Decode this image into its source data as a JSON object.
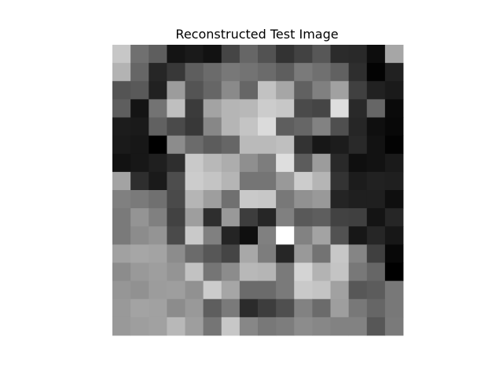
{
  "chart_data": {
    "type": "heatmap",
    "title": "Reconstructed Test Image",
    "colormap": "gray",
    "value_range": [
      0,
      1
    ],
    "rows": 16,
    "cols": 16,
    "values": [
      [
        0.78,
        0.44,
        0.37,
        0.08,
        0.1,
        0.07,
        0.27,
        0.4,
        0.32,
        0.2,
        0.26,
        0.34,
        0.17,
        0.16,
        0.05,
        0.65
      ],
      [
        0.7,
        0.4,
        0.15,
        0.22,
        0.37,
        0.42,
        0.47,
        0.45,
        0.42,
        0.37,
        0.48,
        0.44,
        0.38,
        0.18,
        0.01,
        0.13
      ],
      [
        0.33,
        0.35,
        0.13,
        0.61,
        0.33,
        0.4,
        0.54,
        0.4,
        0.76,
        0.65,
        0.38,
        0.5,
        0.63,
        0.25,
        0.13,
        0.1
      ],
      [
        0.37,
        0.08,
        0.45,
        0.75,
        0.23,
        0.64,
        0.71,
        0.72,
        0.8,
        0.78,
        0.29,
        0.27,
        0.87,
        0.16,
        0.4,
        0.04
      ],
      [
        0.11,
        0.1,
        0.38,
        0.29,
        0.22,
        0.53,
        0.71,
        0.77,
        0.86,
        0.37,
        0.4,
        0.51,
        0.31,
        0.15,
        0.06,
        0.03
      ],
      [
        0.1,
        0.09,
        0.0,
        0.55,
        0.42,
        0.36,
        0.4,
        0.73,
        0.73,
        0.75,
        0.2,
        0.09,
        0.11,
        0.16,
        0.07,
        0.01
      ],
      [
        0.07,
        0.09,
        0.12,
        0.18,
        0.79,
        0.72,
        0.68,
        0.56,
        0.49,
        0.87,
        0.36,
        0.61,
        0.16,
        0.06,
        0.07,
        0.1
      ],
      [
        0.64,
        0.18,
        0.1,
        0.3,
        0.8,
        0.77,
        0.71,
        0.46,
        0.46,
        0.6,
        0.8,
        0.71,
        0.2,
        0.11,
        0.13,
        0.12
      ],
      [
        0.5,
        0.48,
        0.44,
        0.29,
        0.71,
        0.62,
        0.44,
        0.79,
        0.78,
        0.47,
        0.57,
        0.6,
        0.14,
        0.12,
        0.12,
        0.06
      ],
      [
        0.48,
        0.58,
        0.5,
        0.26,
        0.62,
        0.18,
        0.6,
        0.24,
        0.15,
        0.5,
        0.35,
        0.37,
        0.26,
        0.25,
        0.08,
        0.15
      ],
      [
        0.48,
        0.55,
        0.58,
        0.29,
        0.79,
        0.5,
        0.14,
        0.06,
        0.5,
        1.0,
        0.51,
        0.64,
        0.32,
        0.09,
        0.15,
        0.09
      ],
      [
        0.63,
        0.65,
        0.64,
        0.55,
        0.42,
        0.34,
        0.27,
        0.66,
        0.49,
        0.15,
        0.6,
        0.45,
        0.78,
        0.52,
        0.25,
        0.03
      ],
      [
        0.55,
        0.6,
        0.62,
        0.58,
        0.76,
        0.46,
        0.55,
        0.72,
        0.71,
        0.48,
        0.83,
        0.7,
        0.77,
        0.47,
        0.4,
        0.0
      ],
      [
        0.59,
        0.57,
        0.61,
        0.62,
        0.57,
        0.8,
        0.65,
        0.42,
        0.42,
        0.48,
        0.79,
        0.77,
        0.63,
        0.34,
        0.36,
        0.47
      ],
      [
        0.6,
        0.64,
        0.63,
        0.55,
        0.6,
        0.37,
        0.48,
        0.17,
        0.24,
        0.31,
        0.51,
        0.42,
        0.62,
        0.47,
        0.4,
        0.47
      ],
      [
        0.6,
        0.62,
        0.63,
        0.72,
        0.62,
        0.46,
        0.78,
        0.53,
        0.47,
        0.49,
        0.55,
        0.53,
        0.51,
        0.51,
        0.34,
        0.48
      ]
    ]
  }
}
